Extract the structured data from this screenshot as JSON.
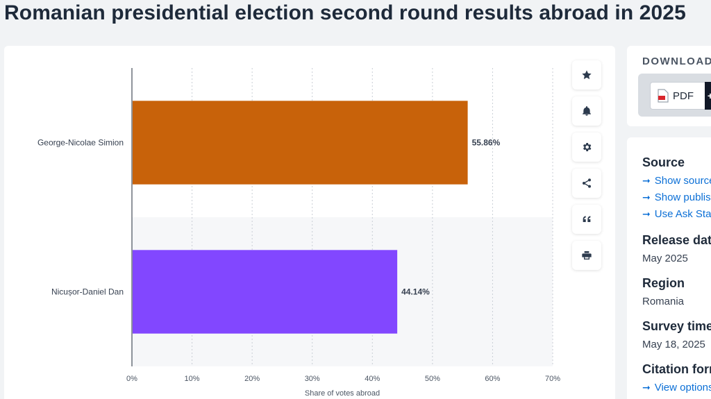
{
  "title": "Romanian presidential election second round results abroad in 2025",
  "chart_data": {
    "type": "bar",
    "orientation": "horizontal",
    "categories": [
      "George-Nicolae Simion",
      "Nicușor-Daniel Dan"
    ],
    "values": [
      55.86,
      44.14
    ],
    "value_labels": [
      "55.86%",
      "44.14%"
    ],
    "colors": [
      "#c8620a",
      "#8247ff"
    ],
    "xlabel": "Share of votes abroad",
    "xlim": [
      0,
      70
    ],
    "x_ticks": [
      "0%",
      "10%",
      "20%",
      "30%",
      "40%",
      "50%",
      "60%",
      "70%"
    ],
    "grid": true
  },
  "tools": [
    "star-icon",
    "bell-icon",
    "gear-icon",
    "share-icon",
    "quote-icon",
    "print-icon"
  ],
  "download": {
    "label": "DOWNLOAD",
    "pdf_label": "PDF",
    "plus_label": "+"
  },
  "info": {
    "source_head": "Source",
    "source_links": [
      "Show source",
      "Show publisher information",
      "Use Ask Statista Research Service"
    ],
    "release_head": "Release date",
    "release_val": "May 2025",
    "region_head": "Region",
    "region_val": "Romania",
    "survey_head": "Survey time period",
    "survey_val": "May 18, 2025",
    "citation_head": "Citation formats",
    "citation_link": "View options"
  }
}
